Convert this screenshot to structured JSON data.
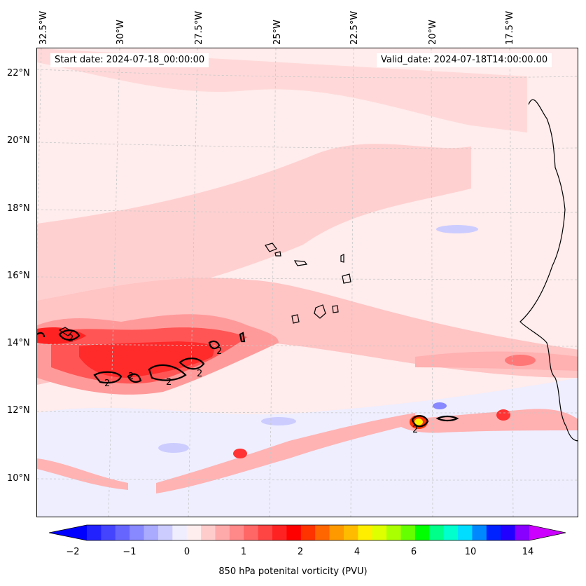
{
  "header": {
    "start_date": "Start date: 2024-07-18_00:00:00",
    "valid_date": "Valid_date: 2024-07-18T14:00:00.00"
  },
  "map": {
    "longitude_labels": [
      "32.5°W",
      "30°W",
      "27.5°W",
      "25°W",
      "22.5°W",
      "20°W",
      "17.5°W"
    ],
    "latitude_labels": [
      "22°N",
      "20°N",
      "18°N",
      "16°N",
      "14°N",
      "12°N",
      "10°N"
    ],
    "contour_label": "2",
    "grid": true
  },
  "colorbar": {
    "label": "850 hPa potenital vorticity (PVU)",
    "ticks": [
      "−2",
      "−1",
      "0",
      "1",
      "2",
      "4",
      "6",
      "10",
      "14"
    ],
    "colors": [
      "#0000ff",
      "#2222ff",
      "#4444ff",
      "#6666ff",
      "#8888ff",
      "#aaaaff",
      "#ccccff",
      "#eeeeff",
      "#ffeeee",
      "#ffcccc",
      "#ffaaaa",
      "#ff8888",
      "#ff6666",
      "#ff4444",
      "#ff2222",
      "#ff0000",
      "#ff3300",
      "#ff6600",
      "#ff9900",
      "#ffbb00",
      "#ffee00",
      "#ddff00",
      "#aaff00",
      "#66ff00",
      "#00ff00",
      "#00ff88",
      "#00ffcc",
      "#00ddff",
      "#0088ff",
      "#0022ff",
      "#2200ff",
      "#8800ff",
      "#cc00ff"
    ]
  }
}
